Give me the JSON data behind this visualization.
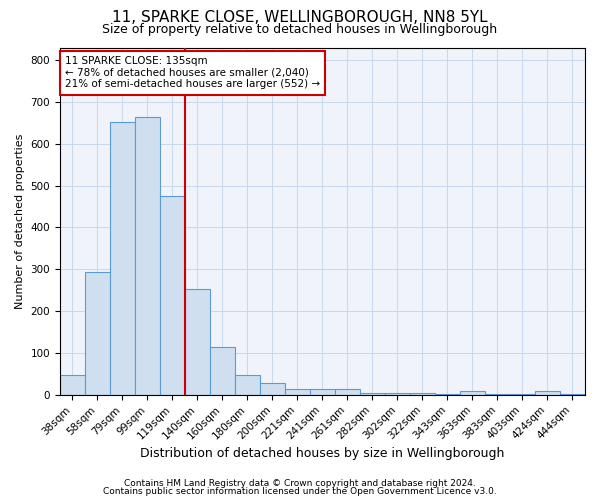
{
  "title1": "11, SPARKE CLOSE, WELLINGBOROUGH, NN8 5YL",
  "title2": "Size of property relative to detached houses in Wellingborough",
  "xlabel": "Distribution of detached houses by size in Wellingborough",
  "ylabel": "Number of detached properties",
  "bar_labels": [
    "38sqm",
    "58sqm",
    "79sqm",
    "99sqm",
    "119sqm",
    "140sqm",
    "160sqm",
    "180sqm",
    "200sqm",
    "221sqm",
    "241sqm",
    "261sqm",
    "282sqm",
    "302sqm",
    "322sqm",
    "343sqm",
    "363sqm",
    "383sqm",
    "403sqm",
    "424sqm",
    "444sqm"
  ],
  "bar_heights": [
    48,
    293,
    651,
    665,
    475,
    252,
    114,
    48,
    29,
    15,
    14,
    13,
    5,
    5,
    5,
    2,
    9,
    1,
    1,
    9,
    1
  ],
  "bar_color": "#cfdff0",
  "bar_edge_color": "#5b9bd5",
  "vline_x_index": 5.0,
  "vline_color": "#cc0000",
  "ylim": [
    0,
    830
  ],
  "yticks": [
    0,
    100,
    200,
    300,
    400,
    500,
    600,
    700,
    800
  ],
  "annotation_line1": "11 SPARKE CLOSE: 135sqm",
  "annotation_line2": "← 78% of detached houses are smaller (2,040)",
  "annotation_line3": "21% of semi-detached houses are larger (552) →",
  "annotation_box_color": "#cc0000",
  "footer1": "Contains HM Land Registry data © Crown copyright and database right 2024.",
  "footer2": "Contains public sector information licensed under the Open Government Licence v3.0.",
  "bg_color": "#ffffff",
  "plot_bg_color": "#f0f4fa",
  "grid_color": "#c8d9ed",
  "title1_fontsize": 11,
  "title2_fontsize": 9,
  "xlabel_fontsize": 9,
  "ylabel_fontsize": 8,
  "tick_fontsize": 7.5,
  "footer_fontsize": 6.5
}
